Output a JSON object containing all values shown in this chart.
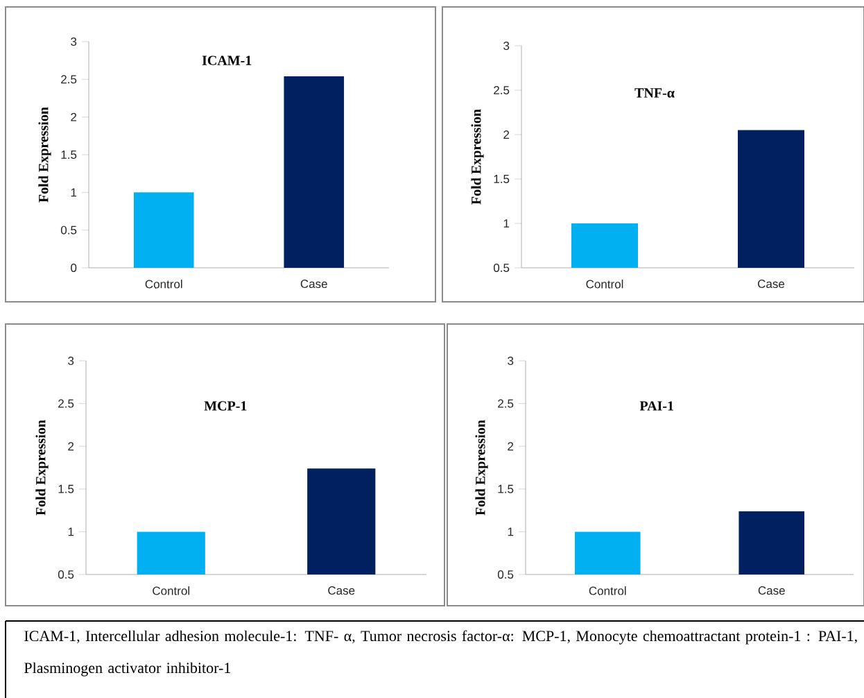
{
  "chart_data": [
    {
      "type": "bar",
      "title": "ICAM-1",
      "ylabel": "Fold Expression",
      "categories": [
        "Control",
        "Case"
      ],
      "values": [
        1,
        2.54
      ],
      "colors": [
        "#00b0f0",
        "#002060"
      ],
      "ylim": [
        0,
        3
      ],
      "yticks": [
        0,
        0.5,
        1,
        1.5,
        2,
        2.5,
        3
      ]
    },
    {
      "type": "bar",
      "title": "TNF-α",
      "ylabel": "Fold Expression",
      "categories": [
        "Control",
        "Case"
      ],
      "values": [
        1,
        2.05
      ],
      "colors": [
        "#00b0f0",
        "#002060"
      ],
      "ylim": [
        0.5,
        3
      ],
      "yticks": [
        0.5,
        1,
        1.5,
        2,
        2.5,
        3
      ]
    },
    {
      "type": "bar",
      "title": "MCP-1",
      "ylabel": "Fold Expression",
      "categories": [
        "Control",
        "Case"
      ],
      "values": [
        1,
        1.74
      ],
      "colors": [
        "#00b0f0",
        "#002060"
      ],
      "ylim": [
        0.5,
        3
      ],
      "yticks": [
        0.5,
        1,
        1.5,
        2,
        2.5,
        3
      ]
    },
    {
      "type": "bar",
      "title": "PAI-1",
      "ylabel": "Fold Expression",
      "categories": [
        "Control",
        "Case"
      ],
      "values": [
        1,
        1.24
      ],
      "colors": [
        "#00b0f0",
        "#002060"
      ],
      "ylim": [
        0.5,
        3
      ],
      "yticks": [
        0.5,
        1,
        1.5,
        2,
        2.5,
        3
      ]
    },
    {
      "type": "other",
      "annotations": [
        "ICAM-1, Intercellular adhesion molecule-1: TNF- α, Tumor necrosis factor-α: MCP-1, Monocyte chemoattractant protein-1 : PAI-1, Plasminogen activator inhibitor-1"
      ]
    }
  ]
}
